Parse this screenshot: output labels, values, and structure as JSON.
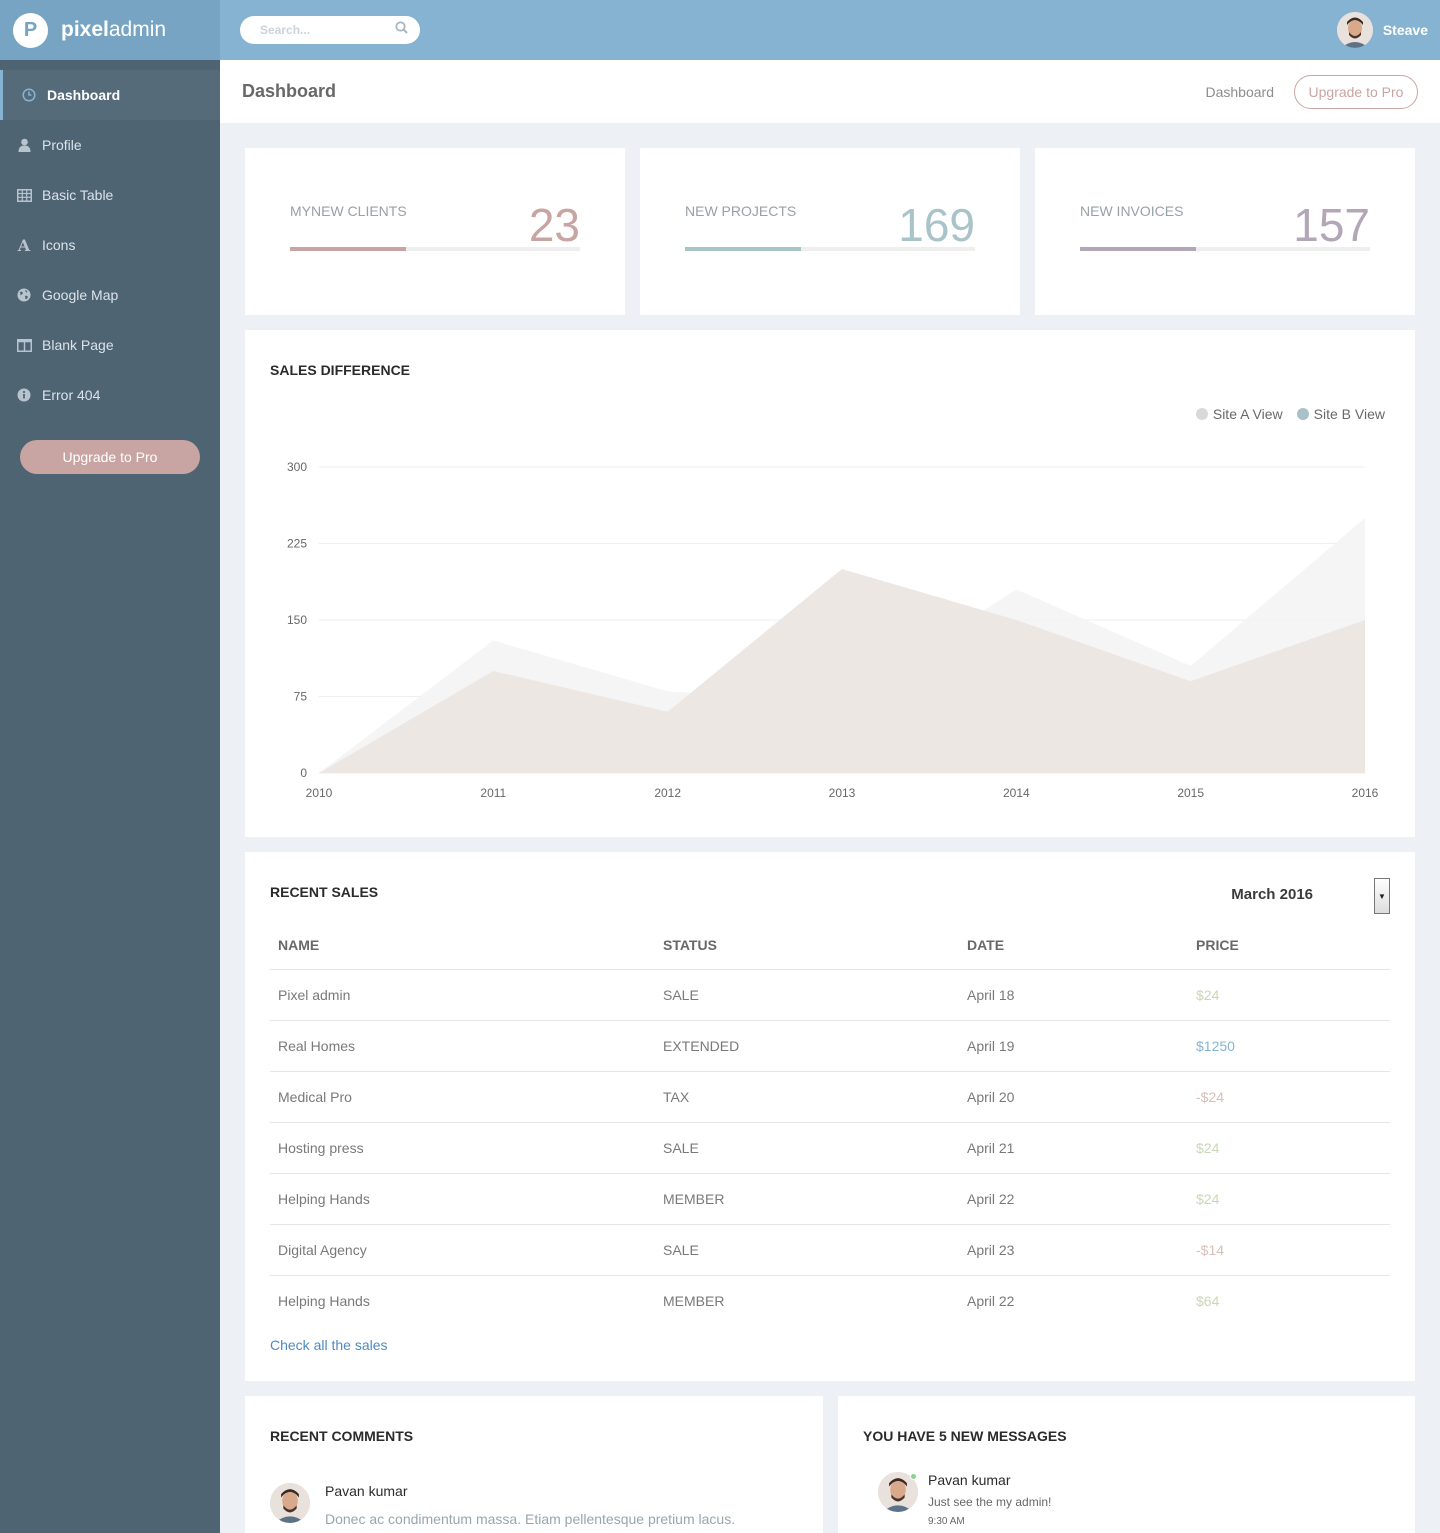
{
  "brand": {
    "logo_letter": "P",
    "name_bold": "pixel",
    "name_light": "admin"
  },
  "search": {
    "placeholder": "Search..."
  },
  "user": {
    "name": "Steave"
  },
  "sidebar": {
    "items": [
      {
        "label": "Dashboard",
        "icon": "clock-icon",
        "active": true
      },
      {
        "label": "Profile",
        "icon": "user-icon",
        "active": false
      },
      {
        "label": "Basic Table",
        "icon": "table-icon",
        "active": false
      },
      {
        "label": "Icons",
        "icon": "font-icon",
        "active": false
      },
      {
        "label": "Google Map",
        "icon": "globe-icon",
        "active": false
      },
      {
        "label": "Blank Page",
        "icon": "columns-icon",
        "active": false
      },
      {
        "label": "Error 404",
        "icon": "info-circle-icon",
        "active": false
      }
    ],
    "upgrade_label": "Upgrade to Pro"
  },
  "header": {
    "title": "Dashboard",
    "breadcrumb": "Dashboard",
    "upgrade_label": "Upgrade to Pro"
  },
  "stats": [
    {
      "label": "MYNEW CLIENTS",
      "value": "23",
      "progress": 0.4,
      "color": "#c8a5a2"
    },
    {
      "label": "NEW PROJECTS",
      "value": "169",
      "progress": 0.4,
      "color": "#a9c4c8"
    },
    {
      "label": "NEW INVOICES",
      "value": "157",
      "progress": 0.4,
      "color": "#b3a6b6"
    }
  ],
  "sales_chart": {
    "title": "SALES DIFFERENCE",
    "legend": [
      {
        "label": "Site A View",
        "color": "#d9d9d9"
      },
      {
        "label": "Site B View",
        "color": "#a8c1c9"
      }
    ]
  },
  "chart_data": {
    "type": "area",
    "title": "SALES DIFFERENCE",
    "x": [
      "2010",
      "2011",
      "2012",
      "2013",
      "2014",
      "2015",
      "2016"
    ],
    "ylim": [
      0,
      300
    ],
    "yticks": [
      "0",
      "75",
      "150",
      "225",
      "300"
    ],
    "series": [
      {
        "name": "Site A View",
        "values": [
          0,
          130,
          80,
          70,
          180,
          105,
          250
        ],
        "color": "#f4f4f4"
      },
      {
        "name": "Site B View",
        "values": [
          0,
          100,
          60,
          200,
          150,
          90,
          150
        ],
        "color": "#ebe5e2"
      }
    ]
  },
  "recent_sales": {
    "title": "RECENT SALES",
    "month": "March 2016",
    "columns": [
      "NAME",
      "STATUS",
      "DATE",
      "PRICE"
    ],
    "rows": [
      {
        "name": "Pixel admin",
        "status": "SALE",
        "date": "April 18",
        "price": "$24",
        "price_color": "#c9d8b6"
      },
      {
        "name": "Real Homes",
        "status": "EXTENDED",
        "date": "April 19",
        "price": "$1250",
        "price_color": "#86b3d2"
      },
      {
        "name": "Medical Pro",
        "status": "TAX",
        "date": "April 20",
        "price": "-$24",
        "price_color": "#d9bfb9"
      },
      {
        "name": "Hosting press",
        "status": "SALE",
        "date": "April 21",
        "price": "$24",
        "price_color": "#c9d8b6"
      },
      {
        "name": "Helping Hands",
        "status": "MEMBER",
        "date": "April 22",
        "price": "$24",
        "price_color": "#c9d8b6"
      },
      {
        "name": "Digital Agency",
        "status": "SALE",
        "date": "April 23",
        "price": "-$14",
        "price_color": "#d9bfb9"
      },
      {
        "name": "Helping Hands",
        "status": "MEMBER",
        "date": "April 22",
        "price": "$64",
        "price_color": "#c9d8b6"
      }
    ],
    "link_label": "Check all the sales"
  },
  "comments": {
    "title": "RECENT COMMENTS",
    "items": [
      {
        "name": "Pavan kumar",
        "text": "Donec ac condimentum massa. Etiam pellentesque pretium lacus."
      }
    ]
  },
  "messages": {
    "title": "YOU HAVE 5 NEW MESSAGES",
    "items": [
      {
        "name": "Pavan kumar",
        "text": "Just see the my admin!",
        "time": "9:30 AM"
      }
    ]
  }
}
